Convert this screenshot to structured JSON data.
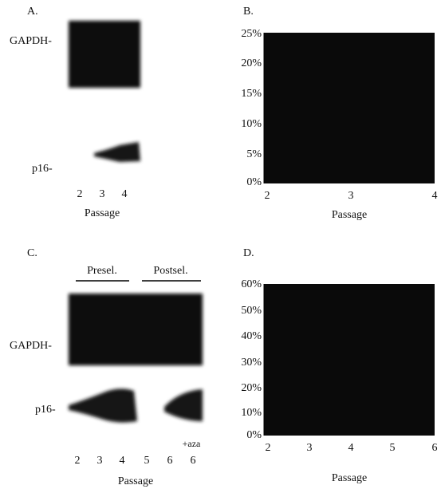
{
  "panels": [
    {
      "label": "A.",
      "rows": [
        "GAPDH-",
        "p16-"
      ],
      "lanes": [
        "2",
        "3",
        "4"
      ],
      "xlabel": "Passage"
    },
    {
      "label": "B.",
      "yticks": [
        "25%",
        "20%",
        "15%",
        "10%",
        "5%",
        "0%"
      ],
      "xticks": [
        "2",
        "3",
        "4"
      ],
      "xlabel": "Passage"
    },
    {
      "label": "C.",
      "groups": [
        "Presel.",
        "Postsel."
      ],
      "rows": [
        "GAPDH-",
        "p16-"
      ],
      "lanes": [
        "2",
        "3",
        "4",
        "5",
        "6",
        "6"
      ],
      "note": "+aza",
      "xlabel": "Passage"
    },
    {
      "label": "D.",
      "yticks": [
        "60%",
        "50%",
        "40%",
        "30%",
        "20%",
        "10%",
        "0%"
      ],
      "xticks": [
        "2",
        "3",
        "4",
        "5",
        "6"
      ],
      "xlabel": "Passage"
    }
  ]
}
